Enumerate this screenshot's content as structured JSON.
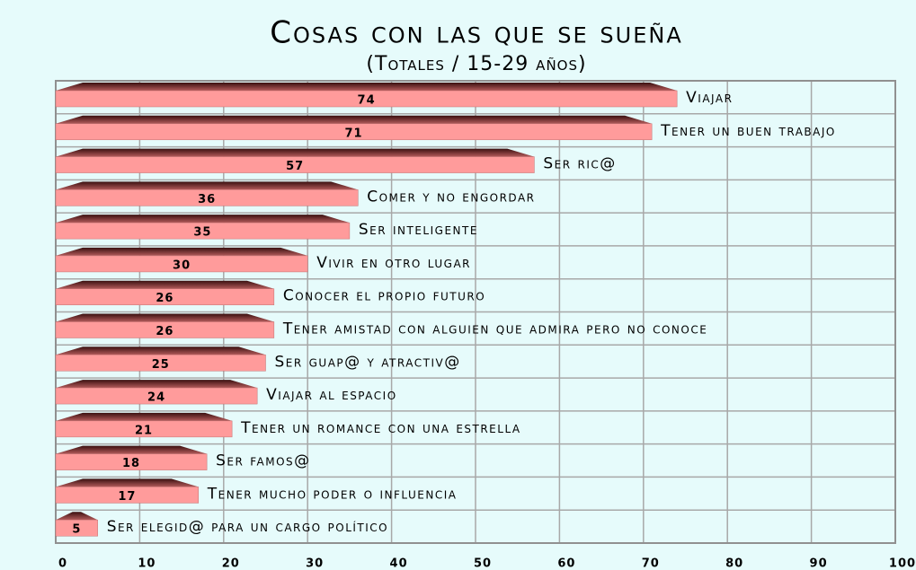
{
  "chart_data": {
    "type": "bar",
    "orientation": "horizontal",
    "title": "Cosas con las que se sueña",
    "subtitle": "(Totales / 15-29 años)",
    "categories": [
      "Viajar",
      "Tener un buen trabajo",
      "Ser ric@",
      "Comer y no engordar",
      "Ser inteligente",
      "Vivir en otro lugar",
      "Conocer el propio futuro",
      "Tener amistad con alguien que admira pero no conoce",
      "Ser guap@ y atractiv@",
      "Viajar al espacio",
      "Tener un romance con una estrella",
      "Ser famos@",
      "Tener mucho poder o influencia",
      "Ser elegid@ para un cargo político"
    ],
    "values": [
      74,
      71,
      57,
      36,
      35,
      30,
      26,
      26,
      25,
      24,
      21,
      18,
      17,
      5
    ],
    "color": "#ff9b9b",
    "xlim": [
      0,
      100
    ],
    "xticks": [
      0,
      10,
      20,
      30,
      40,
      50,
      60,
      70,
      80,
      90,
      100
    ],
    "grid": true
  }
}
